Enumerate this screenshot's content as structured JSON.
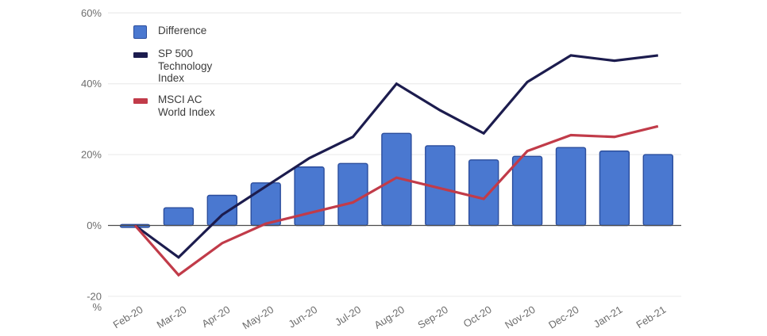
{
  "chart_data": {
    "type": "combo-bar-line",
    "title": "",
    "xlabel": "",
    "ylabel": "",
    "categories": [
      "Feb-20",
      "Mar-20",
      "Apr-20",
      "May-20",
      "Jun-20",
      "Jul-20",
      "Aug-20",
      "Sep-20",
      "Oct-20",
      "Nov-20",
      "Dec-20",
      "Jan-21",
      "Feb-21"
    ],
    "series": [
      {
        "name": "Difference",
        "type": "bar",
        "color": "#4a78d0",
        "border_color": "#2b4d9c",
        "values": [
          0,
          5,
          8.5,
          12,
          16.5,
          17.5,
          26,
          22.5,
          18.5,
          19.5,
          22,
          21,
          20
        ]
      },
      {
        "name": "SP 500 Technology Index",
        "type": "line",
        "color": "#1c1c4e",
        "values": [
          0,
          -9,
          3,
          11,
          19,
          25,
          40,
          32.5,
          26,
          40.5,
          48,
          46.5,
          48
        ]
      },
      {
        "name": "MSCI AC World Index",
        "type": "line",
        "color": "#c13b49",
        "values": [
          0,
          -14,
          -5,
          0.5,
          3.5,
          6.5,
          13.5,
          10.5,
          7.5,
          21,
          25.5,
          25,
          28
        ]
      }
    ],
    "ylim": [
      -20,
      60
    ],
    "y_ticks": [
      {
        "value": 60,
        "label": "60%"
      },
      {
        "value": 40,
        "label": "40%"
      },
      {
        "value": 20,
        "label": "20%"
      },
      {
        "value": 0,
        "label": "0%"
      },
      {
        "value": -20,
        "label": "-20 %"
      }
    ],
    "grid": "horizontal",
    "zero_line": true,
    "legend_position": "inside-top-left",
    "colors": {
      "gridline": "#ededed",
      "zero_line": "#4c4c4c",
      "axis_text": "#6d6d6d"
    }
  },
  "legend": {
    "items": [
      {
        "label": "Difference",
        "swatch": "square",
        "color": "#4a78d0",
        "border_color": "#2b4d9c"
      },
      {
        "label": "SP 500 Technology Index",
        "swatch": "dash",
        "color": "#1c1c4e",
        "border_color": "#1c1c4e"
      },
      {
        "label": "MSCI AC World Index",
        "swatch": "dash",
        "color": "#c13b49",
        "border_color": "#c13b49"
      }
    ]
  }
}
